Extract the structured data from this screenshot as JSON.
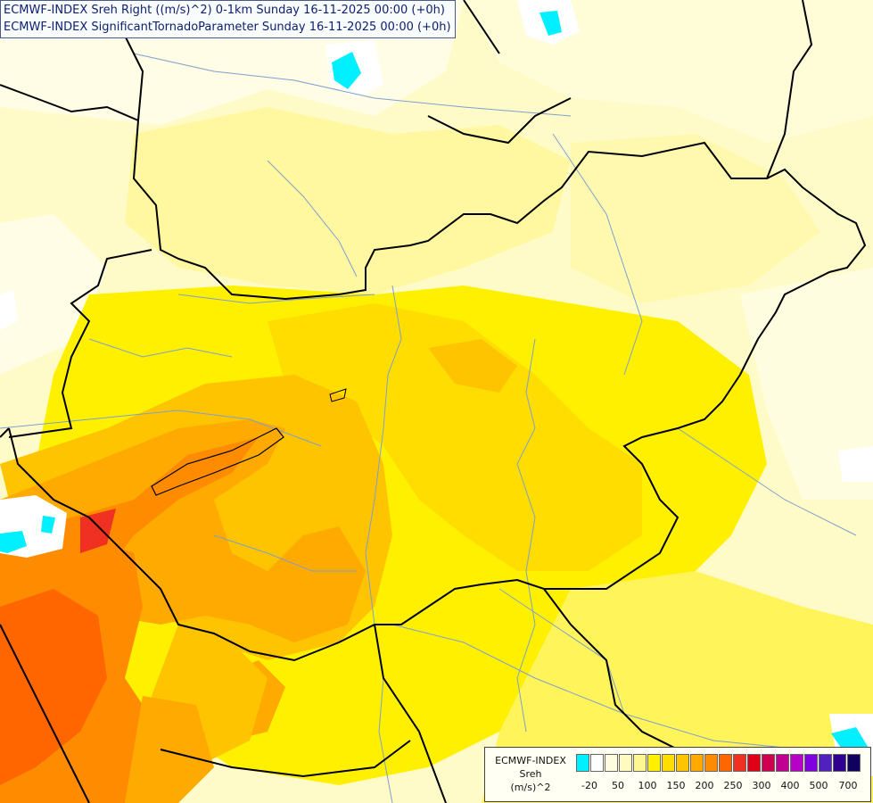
{
  "titles": {
    "line1": "ECMWF-INDEX Sreh Right ((m/s)^2) 0-1km Sunday 16-11-2025 00:00 (+0h)",
    "line2": "ECMWF-INDEX SignificantTornadoParameter Sunday 16-11-2025 00:00 (+0h)"
  },
  "legend": {
    "model": "ECMWF-INDEX",
    "parameter": "Sreh",
    "unit": "(m/s)^2",
    "ticks": [
      "-20",
      "50",
      "100",
      "150",
      "200",
      "250",
      "300",
      "400",
      "500",
      "700"
    ],
    "colors": [
      "#00f0ff",
      "#ffffff",
      "#fffde0",
      "#fffac0",
      "#fff890",
      "#fff000",
      "#ffdd00",
      "#ffc400",
      "#ffaa00",
      "#ff8c00",
      "#ff6600",
      "#f03020",
      "#e00018",
      "#d00050",
      "#c00090",
      "#b800c8",
      "#8000e0",
      "#5020c0",
      "#300090",
      "#100060"
    ]
  },
  "colors": {
    "border": "#000000",
    "river": "#7f9fcf",
    "base": "#fffbc8"
  }
}
